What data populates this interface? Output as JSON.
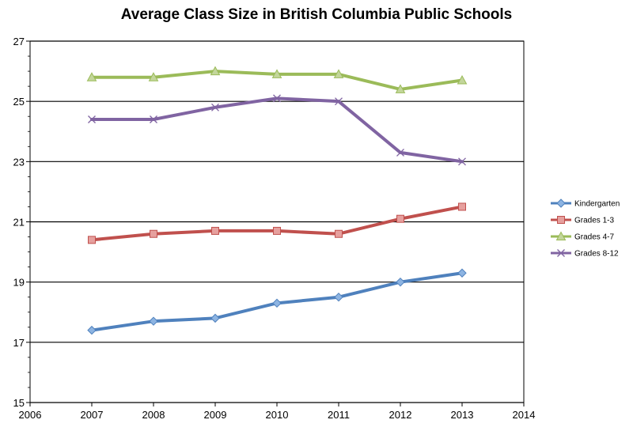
{
  "chart_data": {
    "type": "line",
    "title": "Average Class Size in British Columbia Public Schools",
    "xlabel": "",
    "ylabel": "",
    "xlim": [
      2006,
      2014
    ],
    "ylim": [
      15,
      27
    ],
    "x_ticks": [
      2006,
      2007,
      2008,
      2009,
      2010,
      2011,
      2012,
      2013,
      2014
    ],
    "y_ticks": [
      15,
      17,
      19,
      21,
      23,
      25,
      27
    ],
    "grid": "horizontal major gridlines",
    "legend_position": "right",
    "x": [
      2007,
      2008,
      2009,
      2010,
      2011,
      2012,
      2013
    ],
    "series": [
      {
        "name": "Kindergarten",
        "color": "#4F81BD",
        "fill": "#8DB4E2",
        "marker": "diamond",
        "values": [
          17.4,
          17.7,
          17.8,
          18.3,
          18.5,
          19.0,
          19.3
        ]
      },
      {
        "name": "Grades 1-3",
        "color": "#C0504D",
        "fill": "#E6A09E",
        "marker": "square",
        "values": [
          20.4,
          20.6,
          20.7,
          20.7,
          20.6,
          21.1,
          21.5
        ]
      },
      {
        "name": "Grades 4-7",
        "color": "#9BBB59",
        "fill": "#C3D69B",
        "marker": "triangle",
        "values": [
          25.8,
          25.8,
          26.0,
          25.9,
          25.9,
          25.4,
          25.7
        ]
      },
      {
        "name": "Grades 8-12",
        "color": "#8064A2",
        "fill": "#B3A2C7",
        "marker": "x",
        "values": [
          24.4,
          24.4,
          24.8,
          25.1,
          25.0,
          23.3,
          23.0
        ]
      }
    ]
  }
}
